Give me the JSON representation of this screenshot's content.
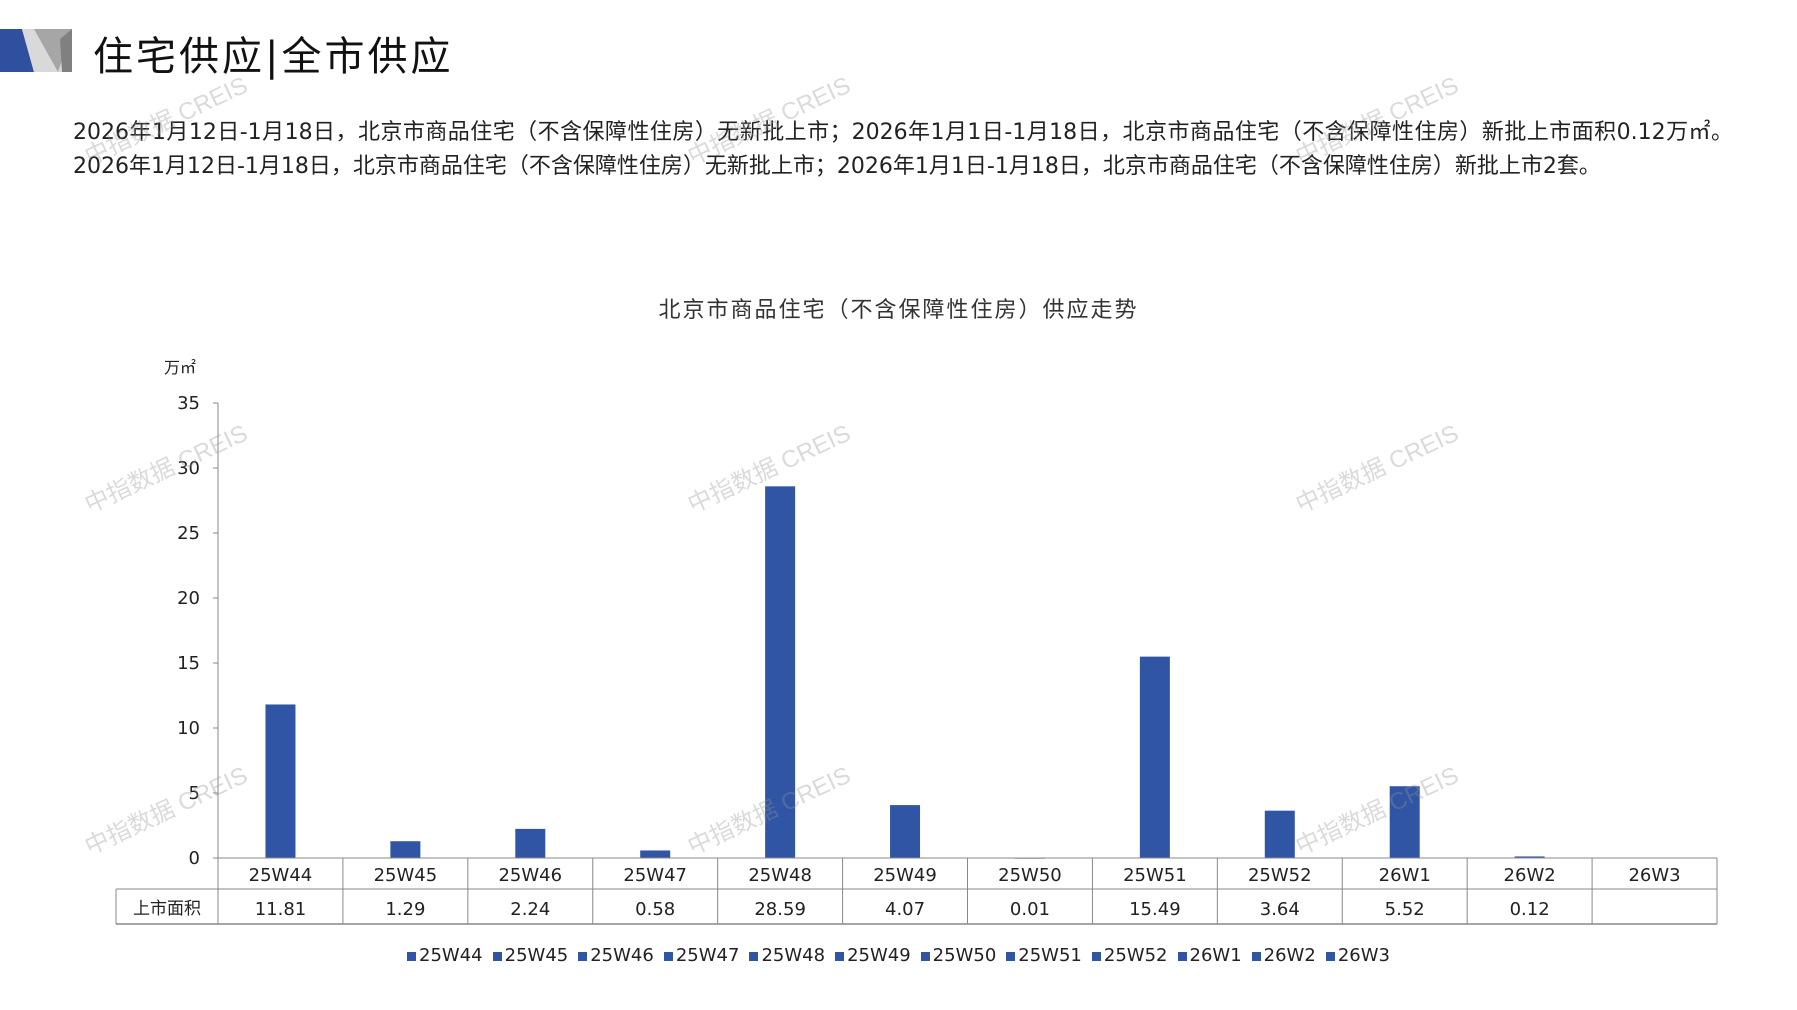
{
  "header": {
    "title": "住宅供应|全市供应"
  },
  "paragraph": "2026年1月12日-1月18日，北京市商品住宅（不含保障性住房）无新批上市；2026年1月1日-1月18日，北京市商品住宅（不含保障性住房）新批上市面积0.12万㎡。2026年1月12日-1月18日，北京市商品住宅（不含保障性住房）无新批上市；2026年1月1日-1月18日，北京市商品住宅（不含保障性住房）新批上市2套。",
  "watermark": "中指数据 CREIS",
  "colors": {
    "bar": "#2f55a4",
    "accent": "#2f4f9f"
  },
  "chart_data": {
    "type": "bar",
    "title": "北京市商品住宅（不含保障性住房）供应走势",
    "ylabel": "万㎡",
    "ylim": [
      0,
      35
    ],
    "yticks": [
      0,
      5,
      10,
      15,
      20,
      25,
      30,
      35
    ],
    "categories": [
      "25W44",
      "25W45",
      "25W46",
      "25W47",
      "25W48",
      "25W49",
      "25W50",
      "25W51",
      "25W52",
      "26W1",
      "26W2",
      "26W3"
    ],
    "series": [
      {
        "name": "上市面积",
        "values": [
          11.81,
          1.29,
          2.24,
          0.58,
          28.59,
          4.07,
          0.01,
          15.49,
          3.64,
          5.52,
          0.12,
          null
        ],
        "labels": [
          "11.81",
          "1.29",
          "2.24",
          "0.58",
          "28.59",
          "4.07",
          "0.01",
          "15.49",
          "3.64",
          "5.52",
          "0.12",
          ""
        ]
      }
    ],
    "legend_position": "bottom",
    "grid": false
  }
}
